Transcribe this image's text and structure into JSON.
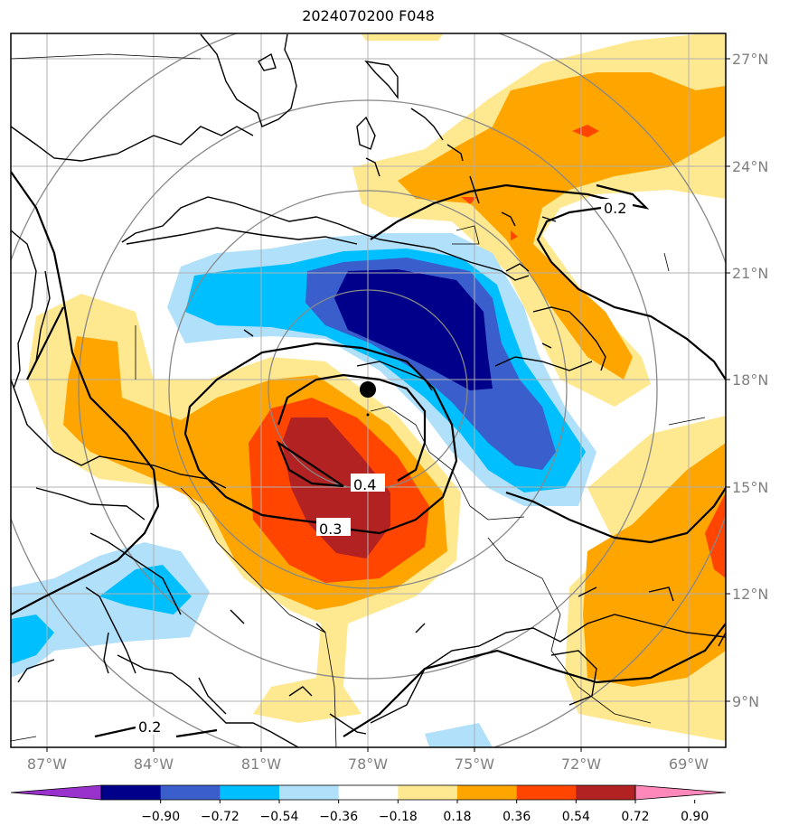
{
  "title": "2024070200 F048",
  "map": {
    "lon_labels": [
      "87°W",
      "84°W",
      "81°W",
      "78°W",
      "75°W",
      "72°W",
      "69°W"
    ],
    "lat_labels": [
      "27°N",
      "24°N",
      "21°N",
      "18°N",
      "15°N",
      "12°N",
      "9°N"
    ],
    "contour_labels": [
      "0.2",
      "0.4",
      "0.3",
      "0.2"
    ],
    "storm_center": {
      "lon": -78.0,
      "lat": 17.7
    }
  },
  "colorbar": {
    "ticks": [
      "−0.90",
      "−0.72",
      "−0.54",
      "−0.36",
      "−0.18",
      "0.18",
      "0.36",
      "0.54",
      "0.72",
      "0.90"
    ],
    "colors": [
      "#9932cc",
      "#00008b",
      "#3a5fcd",
      "#00bfff",
      "#b0e0fa",
      "#ffffff",
      "#ffe990",
      "#ffa500",
      "#ff4500",
      "#b22222",
      "#ff88bb"
    ]
  }
}
